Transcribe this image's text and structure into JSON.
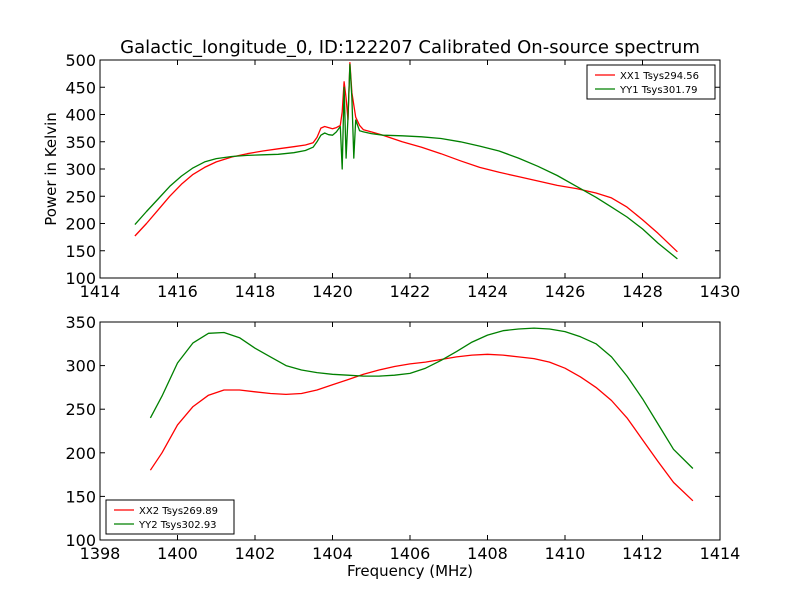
{
  "figure": {
    "title": "Galactic_longitude_0, ID:122207 Calibrated On-source spectrum"
  },
  "chart_data": [
    {
      "type": "line",
      "title": "Galactic_longitude_0, ID:122207 Calibrated On-source spectrum",
      "xlabel": "",
      "ylabel": "Power in Kelvin",
      "xlim": [
        1414,
        1430
      ],
      "ylim": [
        100,
        500
      ],
      "x_ticks": [
        1414,
        1416,
        1418,
        1420,
        1422,
        1424,
        1426,
        1428,
        1430
      ],
      "y_ticks": [
        100,
        150,
        200,
        250,
        300,
        350,
        400,
        450,
        500
      ],
      "legend_position": "top-right",
      "grid": false,
      "series": [
        {
          "name": "XX1 Tsys294.56",
          "color": "#ff0000",
          "points": [
            [
              1414.9,
              177
            ],
            [
              1415.2,
              200
            ],
            [
              1415.5,
              225
            ],
            [
              1415.8,
              250
            ],
            [
              1416.1,
              272
            ],
            [
              1416.4,
              290
            ],
            [
              1416.7,
              303
            ],
            [
              1417.0,
              313
            ],
            [
              1417.4,
              322
            ],
            [
              1417.8,
              328
            ],
            [
              1418.2,
              333
            ],
            [
              1418.6,
              337
            ],
            [
              1419.0,
              341
            ],
            [
              1419.3,
              344
            ],
            [
              1419.5,
              348
            ],
            [
              1419.6,
              358
            ],
            [
              1419.7,
              375
            ],
            [
              1419.8,
              378
            ],
            [
              1419.9,
              376
            ],
            [
              1420.0,
              374
            ],
            [
              1420.1,
              376
            ],
            [
              1420.2,
              380
            ],
            [
              1420.25,
              405
            ],
            [
              1420.3,
              460
            ],
            [
              1420.35,
              430
            ],
            [
              1420.4,
              390
            ],
            [
              1420.45,
              495
            ],
            [
              1420.5,
              440
            ],
            [
              1420.6,
              395
            ],
            [
              1420.7,
              380
            ],
            [
              1420.8,
              372
            ],
            [
              1421.0,
              368
            ],
            [
              1421.3,
              362
            ],
            [
              1421.8,
              350
            ],
            [
              1422.3,
              340
            ],
            [
              1422.8,
              328
            ],
            [
              1423.3,
              315
            ],
            [
              1423.8,
              303
            ],
            [
              1424.3,
              294
            ],
            [
              1424.8,
              286
            ],
            [
              1425.3,
              278
            ],
            [
              1425.8,
              270
            ],
            [
              1426.3,
              264
            ],
            [
              1426.8,
              256
            ],
            [
              1427.2,
              247
            ],
            [
              1427.6,
              230
            ],
            [
              1428.0,
              207
            ],
            [
              1428.4,
              182
            ],
            [
              1428.9,
              148
            ]
          ]
        },
        {
          "name": "YY1 Tsys301.79",
          "color": "#008000",
          "points": [
            [
              1414.9,
              198
            ],
            [
              1415.2,
              222
            ],
            [
              1415.5,
              245
            ],
            [
              1415.8,
              268
            ],
            [
              1416.1,
              287
            ],
            [
              1416.4,
              302
            ],
            [
              1416.7,
              313
            ],
            [
              1417.0,
              319
            ],
            [
              1417.4,
              323
            ],
            [
              1417.8,
              325
            ],
            [
              1418.2,
              326
            ],
            [
              1418.6,
              327
            ],
            [
              1419.0,
              330
            ],
            [
              1419.3,
              334
            ],
            [
              1419.5,
              340
            ],
            [
              1419.6,
              350
            ],
            [
              1419.7,
              362
            ],
            [
              1419.8,
              366
            ],
            [
              1419.9,
              363
            ],
            [
              1420.0,
              362
            ],
            [
              1420.1,
              368
            ],
            [
              1420.2,
              378
            ],
            [
              1420.25,
              300
            ],
            [
              1420.3,
              450
            ],
            [
              1420.35,
              320
            ],
            [
              1420.4,
              395
            ],
            [
              1420.45,
              492
            ],
            [
              1420.5,
              430
            ],
            [
              1420.55,
              320
            ],
            [
              1420.6,
              390
            ],
            [
              1420.7,
              370
            ],
            [
              1420.8,
              368
            ],
            [
              1421.0,
              365
            ],
            [
              1421.3,
              362
            ],
            [
              1421.8,
              361
            ],
            [
              1422.3,
              359
            ],
            [
              1422.8,
              356
            ],
            [
              1423.3,
              350
            ],
            [
              1423.8,
              342
            ],
            [
              1424.3,
              333
            ],
            [
              1424.8,
              320
            ],
            [
              1425.3,
              305
            ],
            [
              1425.8,
              288
            ],
            [
              1426.3,
              268
            ],
            [
              1426.8,
              248
            ],
            [
              1427.2,
              230
            ],
            [
              1427.6,
              212
            ],
            [
              1428.0,
              190
            ],
            [
              1428.4,
              164
            ],
            [
              1428.9,
              135
            ]
          ]
        }
      ]
    },
    {
      "type": "line",
      "title": "",
      "xlabel": "Frequency (MHz)",
      "ylabel": "",
      "xlim": [
        1398,
        1414
      ],
      "ylim": [
        100,
        350
      ],
      "x_ticks": [
        1398,
        1400,
        1402,
        1404,
        1406,
        1408,
        1410,
        1412,
        1414
      ],
      "y_ticks": [
        100,
        150,
        200,
        250,
        300,
        350
      ],
      "legend_position": "bottom-left",
      "grid": false,
      "series": [
        {
          "name": "XX2 Tsys269.89",
          "color": "#ff0000",
          "points": [
            [
              1399.3,
              180
            ],
            [
              1399.6,
              200
            ],
            [
              1400.0,
              232
            ],
            [
              1400.4,
              253
            ],
            [
              1400.8,
              266
            ],
            [
              1401.2,
              272
            ],
            [
              1401.6,
              272
            ],
            [
              1402.0,
              270
            ],
            [
              1402.4,
              268
            ],
            [
              1402.8,
              267
            ],
            [
              1403.2,
              268
            ],
            [
              1403.6,
              272
            ],
            [
              1404.0,
              278
            ],
            [
              1404.4,
              284
            ],
            [
              1404.8,
              290
            ],
            [
              1405.2,
              295
            ],
            [
              1405.6,
              299
            ],
            [
              1406.0,
              302
            ],
            [
              1406.4,
              304
            ],
            [
              1406.8,
              307
            ],
            [
              1407.2,
              310
            ],
            [
              1407.6,
              312
            ],
            [
              1408.0,
              313
            ],
            [
              1408.4,
              312
            ],
            [
              1408.8,
              310
            ],
            [
              1409.2,
              308
            ],
            [
              1409.6,
              304
            ],
            [
              1410.0,
              297
            ],
            [
              1410.4,
              287
            ],
            [
              1410.8,
              275
            ],
            [
              1411.2,
              260
            ],
            [
              1411.6,
              240
            ],
            [
              1412.0,
              215
            ],
            [
              1412.4,
              190
            ],
            [
              1412.8,
              166
            ],
            [
              1413.3,
              145
            ]
          ]
        },
        {
          "name": "YY2 Tsys302.93",
          "color": "#008000",
          "points": [
            [
              1399.3,
              240
            ],
            [
              1399.6,
              265
            ],
            [
              1400.0,
              303
            ],
            [
              1400.4,
              326
            ],
            [
              1400.8,
              337
            ],
            [
              1401.2,
              338
            ],
            [
              1401.6,
              332
            ],
            [
              1402.0,
              320
            ],
            [
              1402.4,
              310
            ],
            [
              1402.8,
              300
            ],
            [
              1403.2,
              295
            ],
            [
              1403.6,
              292
            ],
            [
              1404.0,
              290
            ],
            [
              1404.4,
              289
            ],
            [
              1404.8,
              288
            ],
            [
              1405.2,
              288
            ],
            [
              1405.6,
              289
            ],
            [
              1406.0,
              291
            ],
            [
              1406.4,
              297
            ],
            [
              1406.8,
              306
            ],
            [
              1407.2,
              316
            ],
            [
              1407.6,
              327
            ],
            [
              1408.0,
              335
            ],
            [
              1408.4,
              340
            ],
            [
              1408.8,
              342
            ],
            [
              1409.2,
              343
            ],
            [
              1409.6,
              342
            ],
            [
              1410.0,
              339
            ],
            [
              1410.4,
              333
            ],
            [
              1410.8,
              325
            ],
            [
              1411.2,
              310
            ],
            [
              1411.6,
              288
            ],
            [
              1412.0,
              262
            ],
            [
              1412.4,
              233
            ],
            [
              1412.8,
              204
            ],
            [
              1413.3,
              182
            ]
          ]
        }
      ]
    }
  ]
}
